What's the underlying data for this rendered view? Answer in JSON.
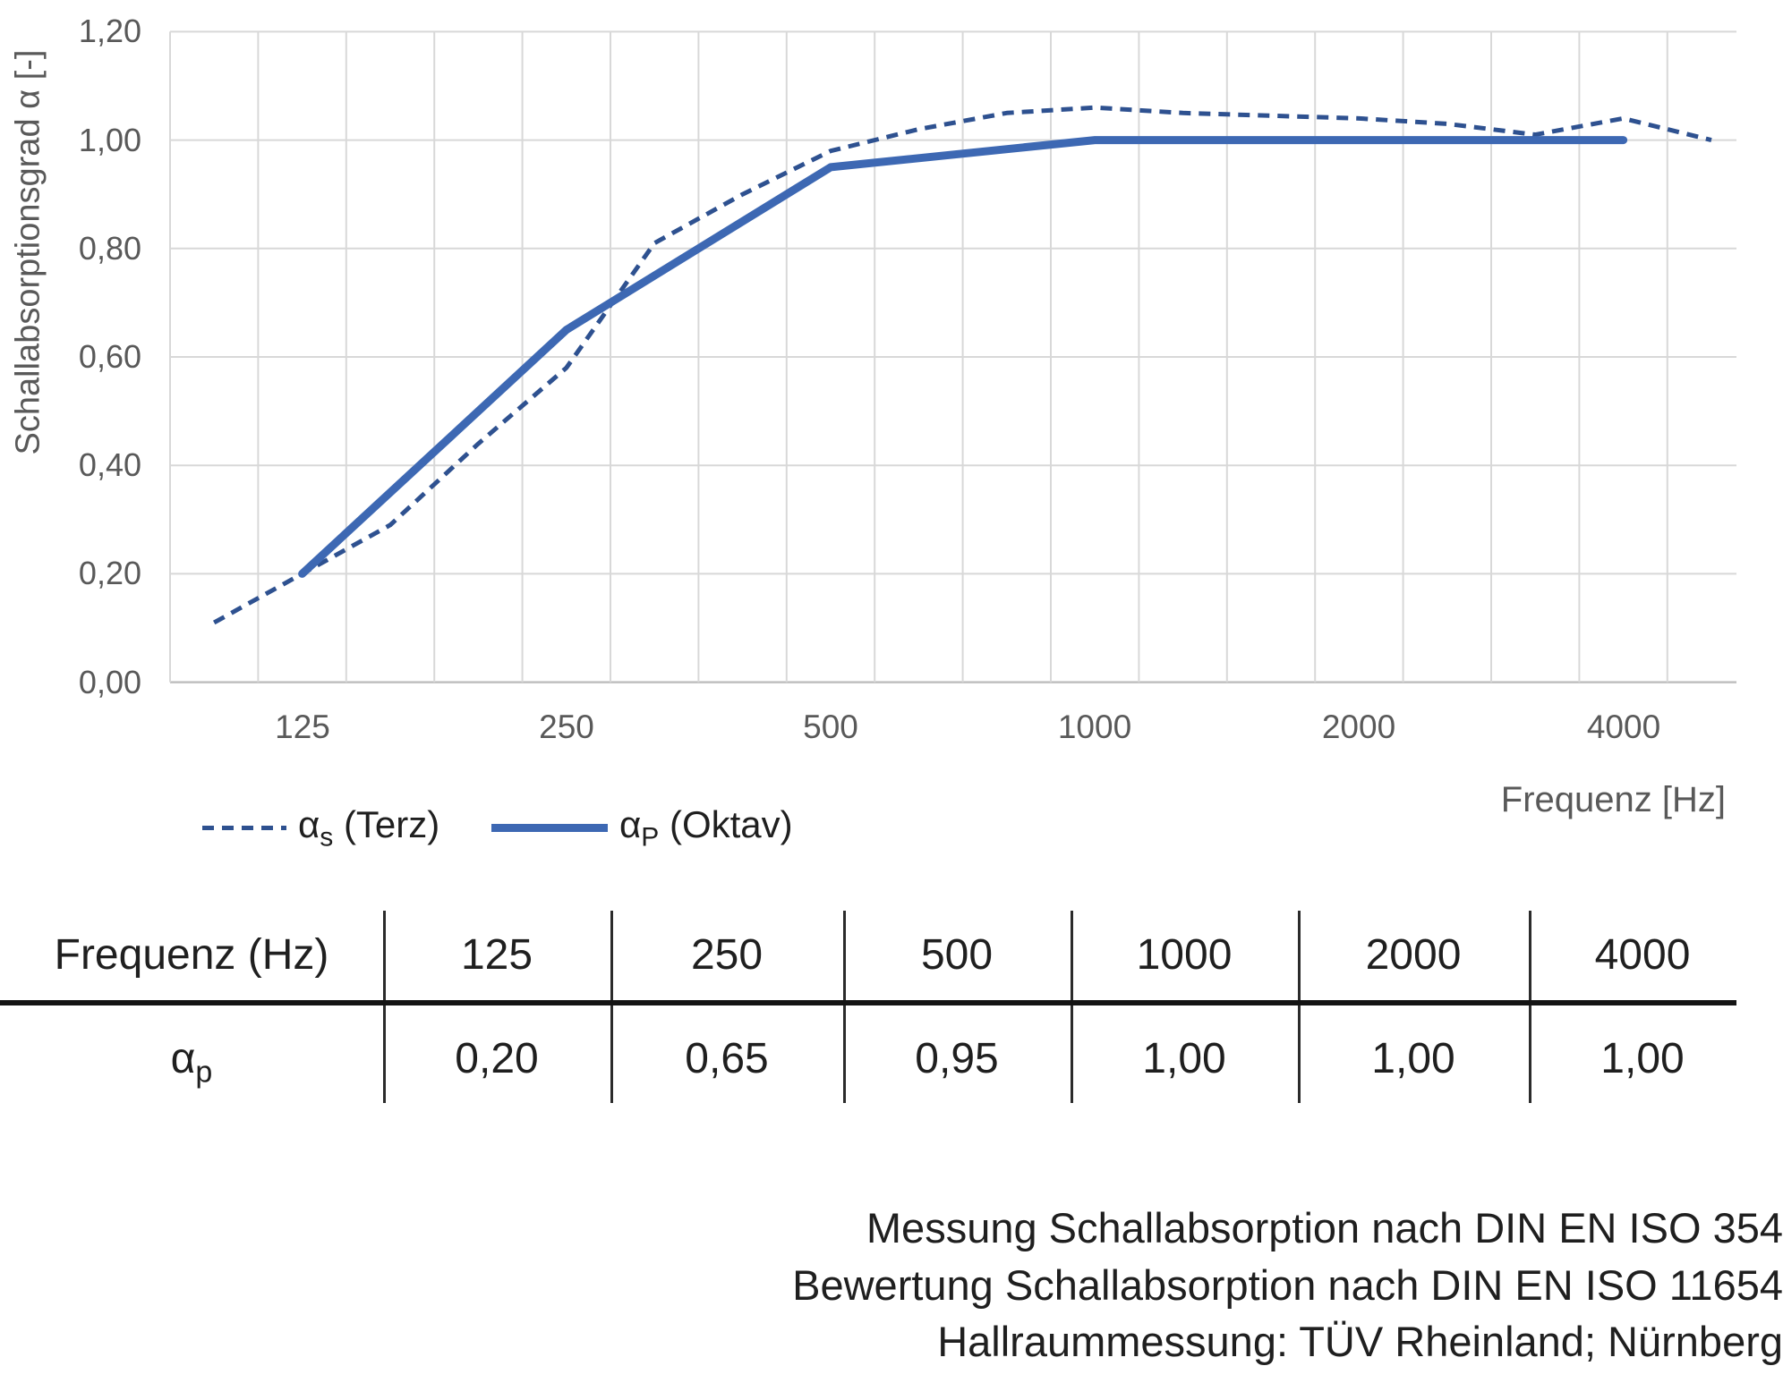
{
  "chart": {
    "y_axis": {
      "title": "Schallabsorptionsgrad α [-]",
      "ticks": [
        "1,20",
        "1,00",
        "0,80",
        "0,60",
        "0,40",
        "0,20",
        "0,00"
      ]
    },
    "x_axis": {
      "title": "Frequenz [Hz]",
      "labels": [
        "125",
        "250",
        "500",
        "1000",
        "2000",
        "4000"
      ]
    },
    "legend": {
      "terz": {
        "symbol": "α",
        "sub": "s",
        "rest": " (Terz)"
      },
      "oktav": {
        "symbol": "α",
        "sub": "P",
        "rest": " (Oktav)"
      }
    },
    "colors": {
      "solid_line": "#3D68B3",
      "dashed_line": "#2E5190",
      "gridline": "#D8D8D8",
      "axis_line": "#BFBFBF",
      "tick_text": "#595959"
    }
  },
  "chart_data": {
    "type": "line",
    "x": [
      100,
      125,
      160,
      200,
      250,
      315,
      400,
      500,
      630,
      800,
      1000,
      1250,
      1600,
      2000,
      2500,
      3150,
      4000,
      5000
    ],
    "x_scale": "third-octave category (log2)",
    "series": [
      {
        "name": "αs (Terz)",
        "style": "dashed",
        "values": [
          0.11,
          0.2,
          0.29,
          0.44,
          0.58,
          0.81,
          0.9,
          0.98,
          1.02,
          1.05,
          1.06,
          1.05,
          1.045,
          1.04,
          1.03,
          1.01,
          1.04,
          1.0
        ]
      },
      {
        "name": "αP (Oktav)",
        "style": "solid",
        "x": [
          125,
          250,
          500,
          1000,
          2000,
          4000
        ],
        "values": [
          0.2,
          0.65,
          0.95,
          1.0,
          1.0,
          1.0
        ]
      }
    ],
    "xlabel": "Frequenz [Hz]",
    "ylabel": "Schallabsorptionsgrad α [-]",
    "ylim": [
      0.0,
      1.2
    ],
    "ytick_step": 0.2,
    "grid": true,
    "legend_position": "bottom-left"
  },
  "table": {
    "header_row": [
      "Frequenz (Hz)",
      "125",
      "250",
      "500",
      "1000",
      "2000",
      "4000"
    ],
    "value_row_label": {
      "symbol": "α",
      "sub": "p"
    },
    "values": [
      "0,20",
      "0,65",
      "0,95",
      "1,00",
      "1,00",
      "1,00"
    ]
  },
  "footer_lines": [
    "Messung Schallabsorption nach DIN EN ISO 354",
    "Bewertung Schallabsorption nach DIN EN ISO 11654",
    "Hallraummessung: TÜV Rheinland; Nürnberg"
  ]
}
